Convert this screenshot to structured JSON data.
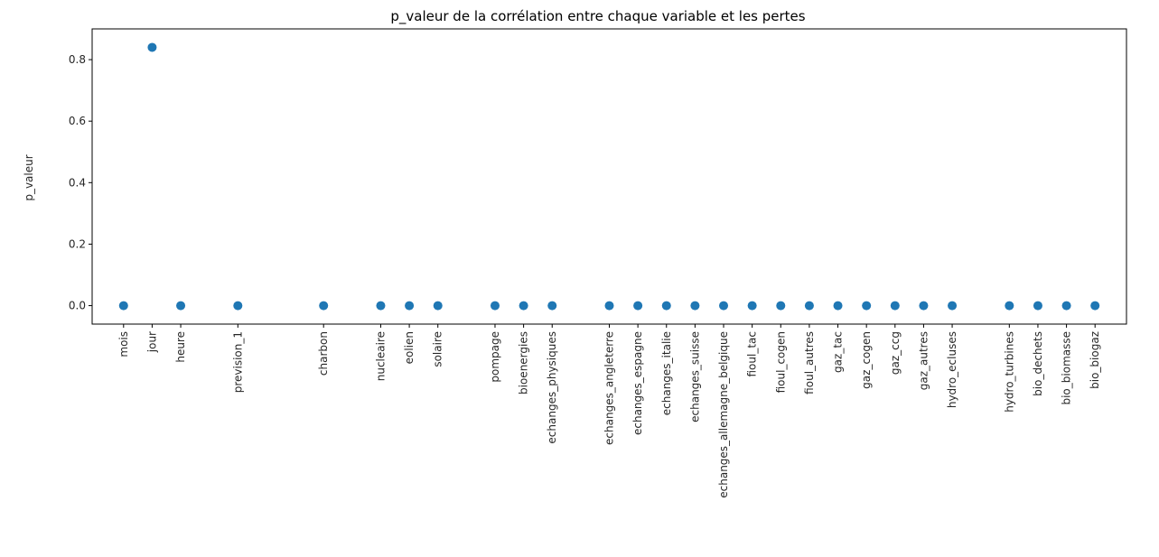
{
  "chart_data": {
    "type": "scatter",
    "title": "p_valeur de la corrélation entre chaque variable et les pertes",
    "xlabel": "",
    "ylabel": "p_valeur",
    "ylim": [
      -0.06,
      0.9
    ],
    "yticks": [
      "0.0",
      "0.2",
      "0.4",
      "0.6",
      "0.8"
    ],
    "ytick_values": [
      0.0,
      0.2,
      0.4,
      0.6,
      0.8
    ],
    "grid": false,
    "marker_color": "#1f77b4",
    "points": [
      {
        "x": "mois",
        "y": 0.0
      },
      {
        "x": "jour",
        "y": 0.84
      },
      {
        "x": "heure",
        "y": 0.0
      },
      {
        "x": "prevision_1",
        "y": 0.0
      },
      {
        "x": "charbon",
        "y": 0.0
      },
      {
        "x": "nucleaire",
        "y": 0.0
      },
      {
        "x": "eolien",
        "y": 0.0
      },
      {
        "x": "solaire",
        "y": 0.0
      },
      {
        "x": "pompage",
        "y": 0.0
      },
      {
        "x": "bioenergies",
        "y": 0.0
      },
      {
        "x": "echanges_physiques",
        "y": 0.0
      },
      {
        "x": "echanges_angleterre",
        "y": 0.0
      },
      {
        "x": "echanges_espagne",
        "y": 0.0
      },
      {
        "x": "echanges_italie",
        "y": 0.0
      },
      {
        "x": "echanges_suisse",
        "y": 0.0
      },
      {
        "x": "echanges_allemagne_belgique",
        "y": 0.0
      },
      {
        "x": "fioul_tac",
        "y": 0.0
      },
      {
        "x": "fioul_cogen",
        "y": 0.0
      },
      {
        "x": "fioul_autres",
        "y": 0.0
      },
      {
        "x": "gaz_tac",
        "y": 0.0
      },
      {
        "x": "gaz_cogen",
        "y": 0.0
      },
      {
        "x": "gaz_ccg",
        "y": 0.0
      },
      {
        "x": "gaz_autres",
        "y": 0.0
      },
      {
        "x": "hydro_ecluses",
        "y": 0.0
      },
      {
        "x": "hydro_turbines",
        "y": 0.0
      },
      {
        "x": "bio_dechets",
        "y": 0.0
      },
      {
        "x": "bio_biomasse",
        "y": 0.0
      },
      {
        "x": "bio_biogaz",
        "y": 0.0
      }
    ]
  }
}
